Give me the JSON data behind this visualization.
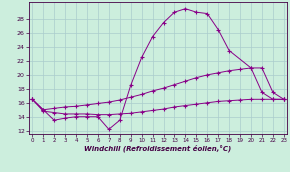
{
  "xlabel": "Windchill (Refroidissement éolien,°C)",
  "background_color": "#cceedd",
  "grid_color": "#aacccc",
  "line_color": "#880088",
  "line1_x": [
    0,
    1,
    2,
    3,
    4,
    5,
    6,
    7,
    8,
    9,
    10,
    11,
    12,
    13,
    14,
    15,
    16,
    17,
    18,
    20,
    21,
    22,
    23
  ],
  "line1_y": [
    16.5,
    15.0,
    13.5,
    13.8,
    14.0,
    14.0,
    14.0,
    12.2,
    13.5,
    18.5,
    22.5,
    25.5,
    27.5,
    29.0,
    29.5,
    29.0,
    28.8,
    26.5,
    23.5,
    21.0,
    17.5,
    16.5,
    16.5
  ],
  "line2_x": [
    0,
    1,
    2,
    3,
    4,
    5,
    6,
    7,
    8,
    9,
    10,
    11,
    12,
    13,
    14,
    15,
    16,
    17,
    18,
    19,
    20,
    21,
    22,
    23
  ],
  "line2_y": [
    16.5,
    15.0,
    15.2,
    15.4,
    15.5,
    15.7,
    15.9,
    16.1,
    16.4,
    16.8,
    17.2,
    17.7,
    18.1,
    18.6,
    19.1,
    19.6,
    20.0,
    20.3,
    20.6,
    20.8,
    21.0,
    21.0,
    17.5,
    16.5
  ],
  "line3_x": [
    0,
    1,
    2,
    3,
    4,
    5,
    6,
    7,
    8,
    9,
    10,
    11,
    12,
    13,
    14,
    15,
    16,
    17,
    18,
    19,
    20,
    21,
    22,
    23
  ],
  "line3_y": [
    16.5,
    14.8,
    14.6,
    14.4,
    14.4,
    14.4,
    14.3,
    14.3,
    14.4,
    14.5,
    14.7,
    14.9,
    15.1,
    15.4,
    15.6,
    15.8,
    16.0,
    16.2,
    16.3,
    16.4,
    16.5,
    16.5,
    16.5,
    16.5
  ],
  "ylim": [
    11.5,
    30.5
  ],
  "xlim": [
    -0.3,
    23.3
  ],
  "yticks": [
    12,
    14,
    16,
    18,
    20,
    22,
    24,
    26,
    28
  ],
  "xticks": [
    0,
    1,
    2,
    3,
    4,
    5,
    6,
    7,
    8,
    9,
    10,
    11,
    12,
    13,
    14,
    15,
    16,
    17,
    18,
    19,
    20,
    21,
    22,
    23
  ],
  "figw": 2.9,
  "figh": 1.72
}
